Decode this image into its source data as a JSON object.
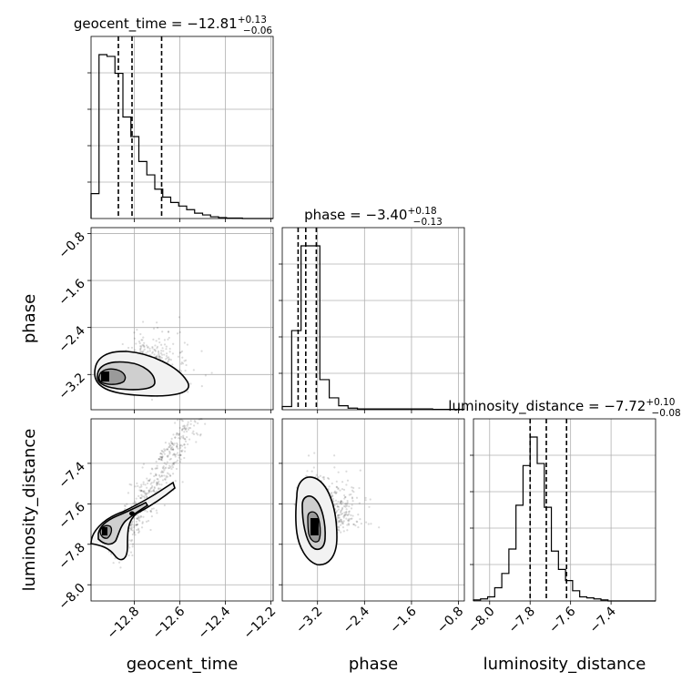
{
  "colors": {
    "line": "#000000",
    "grid": "#b0b0b0",
    "scatter": "#000000",
    "contour_fills": [
      "#f2f2f2",
      "#cfcfcf",
      "#9a9a9a",
      "#000000"
    ]
  },
  "chart_data": {
    "type": "corner",
    "parameters": [
      "geocent_time",
      "phase",
      "luminosity_distance"
    ],
    "axis_labels": {
      "geocent_time": "geocent_time",
      "phase": "phase",
      "luminosity_distance": "luminosity_distance"
    },
    "titles": [
      {
        "name": "geocent_time = −12.81",
        "sup": "+0.13",
        "sub": "−0.06"
      },
      {
        "name": "phase = −3.40",
        "sup": "+0.18",
        "sub": "−0.13"
      },
      {
        "name": "luminosity_distance = −7.72",
        "sup": "+0.10",
        "sub": "−0.08"
      }
    ],
    "ranges": {
      "geocent_time": [
        -12.99,
        -12.19
      ],
      "phase": [
        -3.8,
        -0.7
      ],
      "luminosity_distance": [
        -8.08,
        -7.18
      ]
    },
    "ticks": {
      "geocent_time": [
        -12.8,
        -12.6,
        -12.4,
        -12.2
      ],
      "phase": [
        -3.2,
        -2.4,
        -1.6,
        -0.8
      ],
      "luminosity_distance": [
        -8.0,
        -7.8,
        -7.6,
        -7.4
      ]
    },
    "tick_labels": {
      "geocent_time": [
        "−12.8",
        "−12.6",
        "−12.4",
        "−12.2"
      ],
      "phase": [
        "−3.2",
        "−2.4",
        "−1.6",
        "−0.8"
      ],
      "luminosity_distance": [
        "−8.0",
        "−7.8",
        "−7.6",
        "−7.4"
      ]
    },
    "grid": true,
    "histograms": {
      "geocent_time": {
        "edges": [
          -12.99,
          -12.955,
          -12.92,
          -12.885,
          -12.85,
          -12.815,
          -12.78,
          -12.745,
          -12.71,
          -12.675,
          -12.64,
          -12.605,
          -12.57,
          -12.535,
          -12.5,
          -12.465,
          -12.43,
          -12.395,
          -12.36,
          -12.325,
          -12.29,
          -12.255,
          -12.22,
          -12.19
        ],
        "counts": [
          28,
          184,
          182,
          163,
          114,
          92,
          64,
          49,
          33,
          24,
          18,
          14,
          10,
          6,
          4,
          2,
          1,
          0.5,
          0.5,
          0,
          0,
          0,
          0
        ]
      },
      "phase": {
        "edges": [
          -3.8,
          -3.64,
          -3.48,
          -3.32,
          -3.16,
          -3.0,
          -2.84,
          -2.68,
          -2.52,
          -2.36,
          -2.2,
          -2.04,
          -1.88,
          -1.72,
          -1.56,
          -1.4,
          -1.24,
          -1.08,
          -0.92,
          -0.76,
          -0.7
        ],
        "counts": [
          4,
          100,
          207,
          207,
          38,
          15,
          5,
          2,
          1,
          1,
          1,
          1,
          1,
          1,
          1,
          1,
          0.5,
          0.5,
          0.5,
          0.5
        ]
      },
      "luminosity_distance": {
        "edges": [
          -8.08,
          -8.045,
          -8.01,
          -7.975,
          -7.94,
          -7.905,
          -7.87,
          -7.835,
          -7.8,
          -7.765,
          -7.73,
          -7.695,
          -7.66,
          -7.625,
          -7.59,
          -7.555,
          -7.52,
          -7.485,
          -7.45,
          -7.415,
          -7.38,
          -7.345,
          -7.31,
          -7.275,
          -7.24,
          -7.205,
          -7.18
        ],
        "counts": [
          1,
          2,
          4,
          13,
          27,
          51,
          94,
          133,
          161,
          135,
          92,
          49,
          31,
          20,
          10,
          4,
          3,
          2,
          1,
          0,
          0,
          0,
          0,
          0,
          0,
          0
        ]
      }
    },
    "quantiles": {
      "geocent_time": [
        -12.87,
        -12.81,
        -12.68
      ],
      "phase": [
        -3.53,
        -3.4,
        -3.22
      ],
      "luminosity_distance": [
        -7.8,
        -7.72,
        -7.62
      ]
    }
  }
}
